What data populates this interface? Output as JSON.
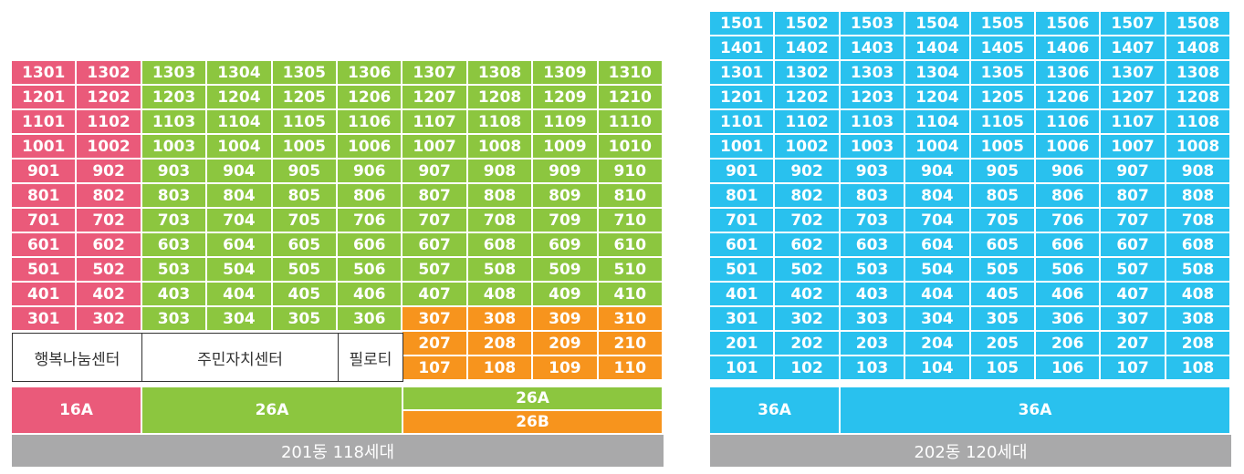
{
  "colors": {
    "pink": "#ea5a7a",
    "green": "#8cc63f",
    "orange": "#f7941d",
    "blue": "#29c1ee",
    "gray": "#a9a9aa"
  },
  "building201": {
    "floors": [
      [
        "1301",
        "1302",
        "1303",
        "1304",
        "1305",
        "1306",
        "1307",
        "1308",
        "1309",
        "1310"
      ],
      [
        "1201",
        "1202",
        "1203",
        "1204",
        "1205",
        "1206",
        "1207",
        "1208",
        "1209",
        "1210"
      ],
      [
        "1101",
        "1102",
        "1103",
        "1104",
        "1105",
        "1106",
        "1107",
        "1108",
        "1109",
        "1110"
      ],
      [
        "1001",
        "1002",
        "1003",
        "1004",
        "1005",
        "1006",
        "1007",
        "1008",
        "1009",
        "1010"
      ],
      [
        "901",
        "902",
        "903",
        "904",
        "905",
        "906",
        "907",
        "908",
        "909",
        "910"
      ],
      [
        "801",
        "802",
        "803",
        "804",
        "805",
        "806",
        "807",
        "808",
        "809",
        "810"
      ],
      [
        "701",
        "702",
        "703",
        "704",
        "705",
        "706",
        "707",
        "708",
        "709",
        "710"
      ],
      [
        "601",
        "602",
        "603",
        "604",
        "605",
        "606",
        "607",
        "608",
        "609",
        "610"
      ],
      [
        "501",
        "502",
        "503",
        "504",
        "505",
        "506",
        "507",
        "508",
        "509",
        "510"
      ],
      [
        "401",
        "402",
        "403",
        "404",
        "405",
        "406",
        "407",
        "408",
        "409",
        "410"
      ],
      [
        "301",
        "302",
        "303",
        "304",
        "305",
        "306",
        "307",
        "308",
        "309",
        "310"
      ]
    ],
    "lower_units": [
      [
        "207",
        "208",
        "209",
        "210"
      ],
      [
        "107",
        "108",
        "109",
        "110"
      ]
    ],
    "facilities": [
      "행복나눔센터",
      "주민자치센터",
      "필로티"
    ],
    "types": [
      "16A",
      "26A",
      "26A",
      "26B"
    ],
    "summary": "201동 118세대"
  },
  "building202": {
    "floors": [
      [
        "1501",
        "1502",
        "1503",
        "1504",
        "1505",
        "1506",
        "1507",
        "1508"
      ],
      [
        "1401",
        "1402",
        "1403",
        "1404",
        "1405",
        "1406",
        "1407",
        "1408"
      ],
      [
        "1301",
        "1302",
        "1303",
        "1304",
        "1305",
        "1306",
        "1307",
        "1308"
      ],
      [
        "1201",
        "1202",
        "1203",
        "1204",
        "1205",
        "1206",
        "1207",
        "1208"
      ],
      [
        "1101",
        "1102",
        "1103",
        "1104",
        "1105",
        "1106",
        "1107",
        "1108"
      ],
      [
        "1001",
        "1002",
        "1003",
        "1004",
        "1005",
        "1006",
        "1007",
        "1008"
      ],
      [
        "901",
        "902",
        "903",
        "904",
        "905",
        "906",
        "907",
        "908"
      ],
      [
        "801",
        "802",
        "803",
        "804",
        "805",
        "806",
        "807",
        "808"
      ],
      [
        "701",
        "702",
        "703",
        "704",
        "705",
        "706",
        "707",
        "708"
      ],
      [
        "601",
        "602",
        "603",
        "604",
        "605",
        "606",
        "607",
        "608"
      ],
      [
        "501",
        "502",
        "503",
        "504",
        "505",
        "506",
        "507",
        "508"
      ],
      [
        "401",
        "402",
        "403",
        "404",
        "405",
        "406",
        "407",
        "408"
      ],
      [
        "301",
        "302",
        "303",
        "304",
        "305",
        "306",
        "307",
        "308"
      ],
      [
        "201",
        "202",
        "203",
        "204",
        "205",
        "206",
        "207",
        "208"
      ],
      [
        "101",
        "102",
        "103",
        "104",
        "105",
        "106",
        "107",
        "108"
      ]
    ],
    "types": [
      "36A",
      "36A"
    ],
    "summary": "202동 120세대"
  }
}
